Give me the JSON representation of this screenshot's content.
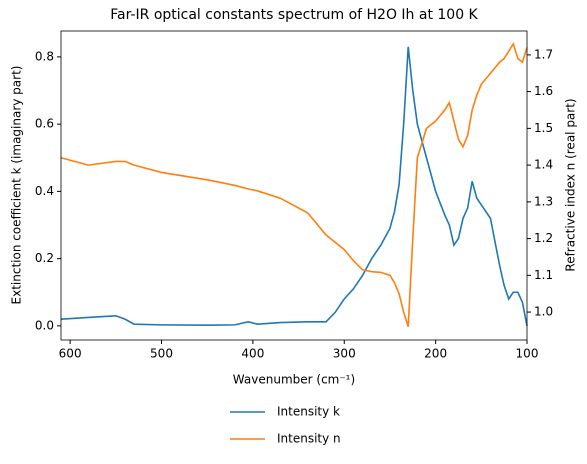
{
  "chart_data": {
    "type": "line",
    "title": "Far-IR optical constants spectrum of H2O Ih at 100 K",
    "x_label": "Wavenumber (cm⁻¹)",
    "y_label": "Extinction coefficient k (imaginary part)",
    "y2_label": "Refractive index n (real part)",
    "x": [
      610,
      580,
      550,
      540,
      530,
      500,
      450,
      420,
      405,
      395,
      370,
      340,
      320,
      310,
      300,
      290,
      280,
      270,
      260,
      250,
      245,
      240,
      235,
      230,
      225,
      220,
      210,
      200,
      190,
      185,
      180,
      175,
      170,
      165,
      160,
      155,
      150,
      140,
      130,
      125,
      120,
      115,
      110,
      105,
      100
    ],
    "series": [
      {
        "name": "Intensity k",
        "color": "#1f77b4",
        "values": [
          0.02,
          0.025,
          0.03,
          0.02,
          0.005,
          0.003,
          0.002,
          0.003,
          0.012,
          0.005,
          0.01,
          0.012,
          0.012,
          0.04,
          0.08,
          0.11,
          0.15,
          0.2,
          0.24,
          0.29,
          0.34,
          0.42,
          0.6,
          0.83,
          0.7,
          0.6,
          0.5,
          0.4,
          0.33,
          0.3,
          0.24,
          0.26,
          0.32,
          0.35,
          0.43,
          0.38,
          0.36,
          0.32,
          0.18,
          0.12,
          0.08,
          0.1,
          0.1,
          0.07,
          0.0
        ]
      },
      {
        "name": "Intensity n",
        "color": "#ff7f0e",
        "axis": "y2",
        "values": [
          1.42,
          1.4,
          1.41,
          1.41,
          1.4,
          1.38,
          1.36,
          1.345,
          1.335,
          1.33,
          1.31,
          1.27,
          1.21,
          1.19,
          1.17,
          1.14,
          1.115,
          1.11,
          1.108,
          1.1,
          1.08,
          1.05,
          1.0,
          0.96,
          1.2,
          1.42,
          1.5,
          1.52,
          1.55,
          1.57,
          1.52,
          1.47,
          1.45,
          1.48,
          1.55,
          1.59,
          1.62,
          1.65,
          1.68,
          1.69,
          1.71,
          1.73,
          1.69,
          1.68,
          1.72
        ]
      }
    ],
    "xlim": [
      610,
      100
    ],
    "xticks": [
      600,
      500,
      400,
      300,
      200,
      100
    ],
    "ylim": [
      -0.042,
      0.877
    ],
    "yticks": [
      {
        "value": 0,
        "label": "0.0"
      },
      0.2,
      0.4,
      0.6,
      0.8
    ],
    "y2lim": [
      0.924,
      1.765
    ],
    "y2ticks": [
      {
        "value": 1,
        "label": "1.0"
      },
      1.1,
      1.2,
      1.3,
      1.4,
      1.5,
      1.6,
      1.7
    ],
    "legend": "bottom"
  }
}
